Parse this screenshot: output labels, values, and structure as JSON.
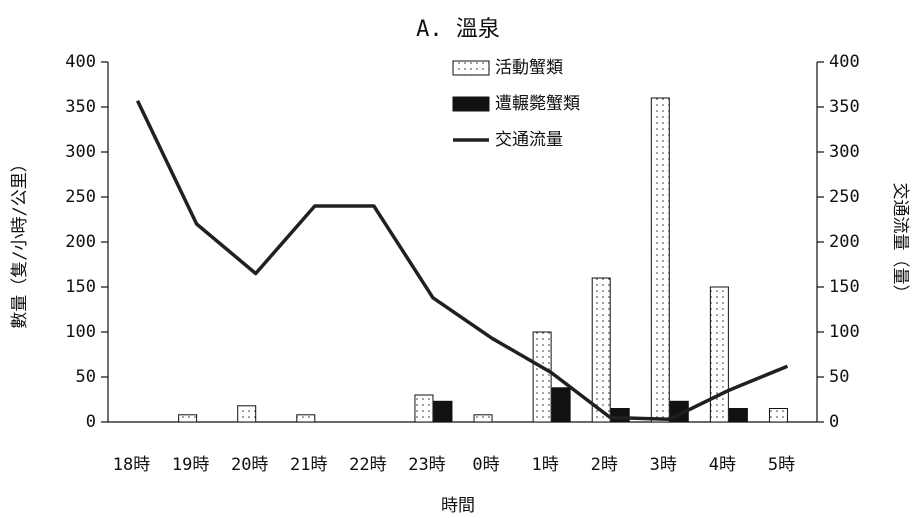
{
  "chart_data": {
    "type": "bar-line",
    "title": "A. 溫泉",
    "x_label": "時間",
    "y_label": "數量（隻/小時/公里）",
    "y2_label": "交通流量（量）",
    "categories": [
      "18時",
      "19時",
      "20時",
      "21時",
      "22時",
      "23時",
      "0時",
      "1時",
      "2時",
      "3時",
      "4時",
      "5時"
    ],
    "series": [
      {
        "name": "活動蟹類",
        "type": "bar",
        "color": "#ffffff",
        "hatch": "dotted",
        "values": [
          null,
          8,
          18,
          8,
          null,
          30,
          8,
          100,
          160,
          360,
          150,
          15
        ]
      },
      {
        "name": "遭輾斃蟹類",
        "type": "bar",
        "color": "#111111",
        "values": [
          null,
          null,
          null,
          null,
          null,
          23,
          null,
          38,
          15,
          23,
          15,
          null
        ]
      },
      {
        "name": "交通流量",
        "type": "line",
        "color": "#231f20",
        "axis": "y2",
        "values": [
          357,
          220,
          165,
          240,
          240,
          138,
          93,
          55,
          5,
          3,
          35,
          62
        ]
      }
    ],
    "ylim": [
      0,
      400
    ],
    "yticks": [
      0,
      50,
      100,
      150,
      200,
      250,
      300,
      350,
      400
    ],
    "y2lim": [
      0,
      400
    ],
    "y2ticks": [
      0,
      50,
      100,
      150,
      200,
      250,
      300,
      350,
      400
    ],
    "grid": false,
    "legend": "top"
  }
}
